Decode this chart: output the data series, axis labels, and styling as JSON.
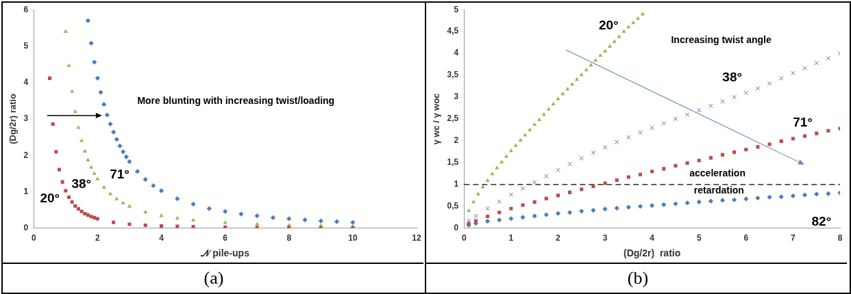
{
  "chart_data": [
    {
      "type": "scatter",
      "xlabel": "𝒩 pile-ups",
      "ylabel": "(Dg/2r) ratio",
      "xlim": [
        0,
        12
      ],
      "xticks": [
        0,
        2,
        4,
        6,
        8,
        10,
        12
      ],
      "ylim": [
        0,
        6
      ],
      "yticks": [
        0,
        1,
        2,
        3,
        4,
        5,
        6
      ],
      "legend": false,
      "series": [
        {
          "name": "20°",
          "color": "#be4b48",
          "marker": "square",
          "x": [
            0.5,
            0.6,
            0.7,
            0.8,
            0.9,
            1.0,
            1.1,
            1.2,
            1.3,
            1.4,
            1.5,
            1.6,
            1.7,
            1.8,
            1.9,
            2.0,
            2.5,
            3,
            3.5,
            4,
            4.5,
            5,
            6,
            7,
            8,
            9,
            10
          ],
          "values": [
            4.12,
            2.86,
            2.1,
            1.61,
            1.27,
            1.03,
            0.85,
            0.72,
            0.61,
            0.53,
            0.46,
            0.4,
            0.36,
            0.32,
            0.29,
            0.26,
            0.16,
            0.11,
            0.08,
            0.06,
            0.05,
            0.04,
            0.03,
            0.02,
            0.02,
            0.01,
            0.01
          ]
        },
        {
          "name": "38°",
          "color": "#98b954",
          "marker": "triangle",
          "x": [
            1.0,
            1.1,
            1.2,
            1.3,
            1.4,
            1.5,
            1.6,
            1.7,
            1.8,
            1.9,
            2.0,
            2.2,
            2.4,
            2.6,
            2.8,
            3.0,
            3.5,
            4,
            4.5,
            5,
            6,
            7,
            8,
            9,
            10
          ],
          "values": [
            5.4,
            4.46,
            3.75,
            3.2,
            2.76,
            2.4,
            2.11,
            1.87,
            1.67,
            1.5,
            1.35,
            1.12,
            0.94,
            0.8,
            0.69,
            0.6,
            0.44,
            0.34,
            0.27,
            0.22,
            0.15,
            0.11,
            0.08,
            0.07,
            0.05
          ]
        },
        {
          "name": "71°",
          "color": "#4a7ebb",
          "marker": "diamond",
          "x": [
            1.7,
            1.8,
            1.9,
            2.0,
            2.1,
            2.2,
            2.3,
            2.4,
            2.5,
            2.6,
            2.7,
            2.8,
            2.9,
            3.0,
            3.25,
            3.5,
            3.75,
            4,
            4.5,
            5,
            5.5,
            6,
            6.5,
            7,
            7.5,
            8,
            8.5,
            9,
            9.5,
            10
          ],
          "values": [
            5.7,
            5.08,
            4.56,
            4.12,
            3.73,
            3.4,
            3.11,
            2.86,
            2.64,
            2.44,
            2.26,
            2.1,
            1.96,
            1.83,
            1.56,
            1.34,
            1.17,
            1.03,
            0.81,
            0.66,
            0.54,
            0.46,
            0.39,
            0.34,
            0.29,
            0.26,
            0.23,
            0.2,
            0.18,
            0.16
          ]
        }
      ],
      "annotations": [
        "More blunting with increasing twist/loading",
        "(a)"
      ]
    },
    {
      "type": "scatter",
      "xlabel": "(Dg/2r)  ratio",
      "ylabel": "γ wc / γ woc",
      "xlim": [
        0,
        8
      ],
      "xticks": [
        0,
        1,
        2,
        3,
        4,
        5,
        6,
        7,
        8
      ],
      "ylim": [
        0,
        5
      ],
      "yticks": [
        0,
        {
          "value": 0.5,
          "label": "0,5"
        },
        1,
        {
          "value": 1.5,
          "label": "1,5"
        },
        2,
        {
          "value": 2.5,
          "label": "2,5"
        },
        3,
        {
          "value": 3.5,
          "label": "3,5"
        },
        4,
        {
          "value": 4.5,
          "label": "4,5"
        },
        5
      ],
      "legend": false,
      "series": [
        {
          "name": "20°",
          "color": "#98b954",
          "marker": "triangle",
          "x": [
            0.1,
            0.2,
            0.3,
            0.4,
            0.5,
            0.6,
            0.7,
            0.8,
            0.9,
            1.0,
            1.1,
            1.2,
            1.3,
            1.4,
            1.5,
            1.6,
            1.7,
            1.8,
            1.9,
            2.0,
            2.1,
            2.2,
            2.3,
            2.4,
            2.5,
            2.6,
            2.7,
            2.8,
            2.9,
            3.0,
            3.1,
            3.2,
            3.3,
            3.4,
            3.5,
            3.6,
            3.7,
            3.8
          ],
          "values": [
            0.4,
            0.6,
            0.78,
            0.94,
            1.09,
            1.24,
            1.38,
            1.51,
            1.64,
            1.77,
            1.89,
            2.01,
            2.13,
            2.25,
            2.37,
            2.48,
            2.6,
            2.72,
            2.84,
            2.96,
            3.07,
            3.18,
            3.29,
            3.4,
            3.51,
            3.62,
            3.73,
            3.84,
            3.95,
            4.05,
            4.16,
            4.27,
            4.38,
            4.5,
            4.6,
            4.7,
            4.8,
            4.9
          ]
        },
        {
          "name": "38°",
          "color": "#7d60a0",
          "marker": "cross",
          "x": [
            0.1,
            0.25,
            0.5,
            0.75,
            1,
            1.25,
            1.5,
            1.75,
            2,
            2.25,
            2.5,
            2.75,
            3,
            3.25,
            3.5,
            3.75,
            4,
            4.25,
            4.5,
            4.75,
            5,
            5.25,
            5.5,
            5.75,
            6,
            6.25,
            6.5,
            6.75,
            7,
            7.25,
            7.5,
            7.75,
            8
          ],
          "values": [
            0.17,
            0.28,
            0.45,
            0.61,
            0.77,
            0.91,
            1.05,
            1.19,
            1.33,
            1.47,
            1.6,
            1.73,
            1.85,
            1.97,
            2.08,
            2.19,
            2.3,
            2.4,
            2.5,
            2.6,
            2.7,
            2.8,
            2.9,
            3.0,
            3.1,
            3.2,
            3.31,
            3.43,
            3.55,
            3.66,
            3.78,
            3.89,
            4.0
          ]
        },
        {
          "name": "71°",
          "color": "#be4b48",
          "marker": "square",
          "x": [
            0.1,
            0.25,
            0.5,
            0.75,
            1,
            1.25,
            1.5,
            1.75,
            2,
            2.25,
            2.5,
            2.75,
            3,
            3.25,
            3.5,
            3.75,
            4,
            4.25,
            4.5,
            4.75,
            5,
            5.25,
            5.5,
            5.75,
            6,
            6.25,
            6.5,
            6.75,
            7,
            7.25,
            7.5,
            7.75,
            8
          ],
          "values": [
            0.1,
            0.17,
            0.27,
            0.36,
            0.45,
            0.53,
            0.6,
            0.68,
            0.75,
            0.82,
            0.89,
            0.96,
            1.03,
            1.1,
            1.17,
            1.23,
            1.3,
            1.36,
            1.43,
            1.49,
            1.55,
            1.61,
            1.68,
            1.74,
            1.8,
            1.86,
            1.92,
            1.99,
            2.05,
            2.11,
            2.17,
            2.23,
            2.28
          ]
        },
        {
          "name": "82°",
          "color": "#4a7ebb",
          "marker": "diamond",
          "x": [
            0.1,
            0.25,
            0.5,
            0.75,
            1,
            1.25,
            1.5,
            1.75,
            2,
            2.25,
            2.5,
            2.75,
            3,
            3.25,
            3.5,
            3.75,
            4,
            4.25,
            4.5,
            4.75,
            5,
            5.25,
            5.5,
            5.75,
            6,
            6.25,
            6.5,
            6.75,
            7,
            7.25,
            7.5,
            7.75,
            8
          ],
          "values": [
            0.07,
            0.11,
            0.16,
            0.19,
            0.22,
            0.25,
            0.28,
            0.31,
            0.34,
            0.36,
            0.39,
            0.41,
            0.44,
            0.46,
            0.48,
            0.5,
            0.52,
            0.54,
            0.56,
            0.58,
            0.6,
            0.62,
            0.64,
            0.65,
            0.67,
            0.69,
            0.71,
            0.72,
            0.74,
            0.76,
            0.78,
            0.79,
            0.81
          ]
        }
      ],
      "ref_lines": [
        {
          "axis": "y",
          "value": 1,
          "color": "#000000",
          "line_style": "dashed"
        }
      ],
      "annotations": [
        "Increasing twist angle",
        "acceleration",
        "retardation",
        "(b)"
      ]
    }
  ]
}
